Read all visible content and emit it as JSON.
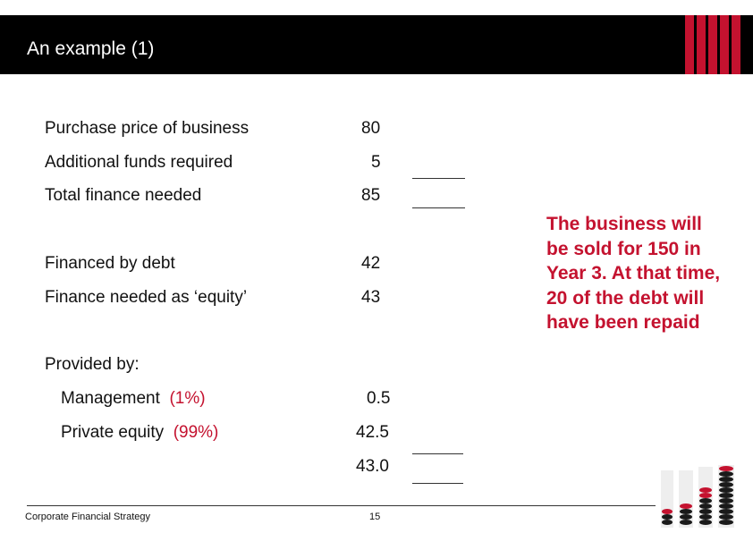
{
  "header": {
    "title": "An example (1)"
  },
  "colors": {
    "accent": "#c4122f",
    "header_bg": "#000000"
  },
  "rows": {
    "purchase": {
      "label": "Purchase price of business",
      "value": "80"
    },
    "additional": {
      "label": "Additional funds required",
      "value": "5"
    },
    "total": {
      "label": "Total finance needed",
      "value": "85"
    },
    "debt": {
      "label": "Financed by debt",
      "value": "42"
    },
    "equity": {
      "label": "Finance needed as ‘equity’",
      "value": "43"
    },
    "provided_by": {
      "label": "Provided by:"
    },
    "management": {
      "label": "Management",
      "pct": "(1%)",
      "value": "0.5"
    },
    "private_equity": {
      "label": "Private equity",
      "pct": "(99%)",
      "value": "42.5"
    },
    "sum": {
      "value": "43.0"
    }
  },
  "note": "The business will be sold for 150 in Year 3. At that time, 20 of the debt will have been repaid",
  "footer": {
    "source": "Corporate Financial Strategy",
    "page": "15"
  },
  "images": {
    "corner": "stacked-coins-image"
  }
}
